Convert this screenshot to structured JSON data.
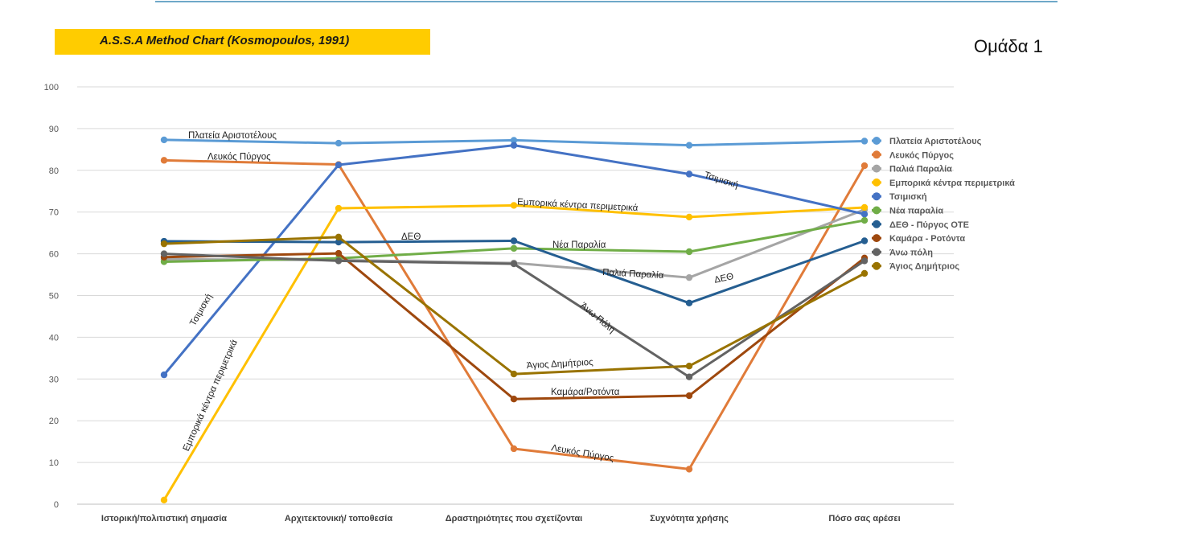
{
  "header": {
    "title": "A.S.S.A Method Chart (Kosmopoulos, 1991)",
    "group": "Ομάδα 1"
  },
  "chart_data": {
    "type": "line",
    "title": "A.S.S.A Method Chart (Kosmopoulos, 1991)",
    "xlabel": "",
    "ylabel": "",
    "ylim": [
      0,
      100
    ],
    "yticks": [
      0,
      10,
      20,
      30,
      40,
      50,
      60,
      70,
      80,
      90,
      100
    ],
    "grid": "horizontal",
    "legend_position": "right",
    "categories": [
      "Ιστορική/πολιτιστική σημασία",
      "Αρχιτεκτονική/ τοποθεσία",
      "Δραστηριότητες που σχετίζονται",
      "Συχνότητα χρήσης",
      "Πόσο σας αρέσει"
    ],
    "series": [
      {
        "name": "Πλατεία Αριστοτέλους",
        "color": "#5b9bd5",
        "values": [
          87.3,
          86.5,
          87.2,
          86.0,
          87.0
        ]
      },
      {
        "name": "Λευκός Πύργος",
        "color": "#e07b39",
        "values": [
          82.4,
          81.4,
          13.3,
          8.4,
          81.1
        ]
      },
      {
        "name": "Παλιά Παραλία",
        "color": "#a5a5a5",
        "values": [
          58.7,
          58.5,
          57.8,
          54.3,
          70.6
        ]
      },
      {
        "name": "Εμπορικά κέντρα περιμετρικά",
        "color": "#ffc000",
        "values": [
          1.0,
          70.9,
          71.6,
          68.8,
          71.1
        ]
      },
      {
        "name": "Τσιμισκή",
        "color": "#4472c4",
        "values": [
          31.0,
          81.3,
          86.0,
          79.1,
          69.5
        ]
      },
      {
        "name": "Νέα παραλία",
        "color": "#70ad47",
        "values": [
          58.1,
          58.9,
          61.3,
          60.5,
          68.0
        ]
      },
      {
        "name": "ΔΕΘ - Πύργος ΟΤΕ",
        "color": "#255e91",
        "values": [
          63.0,
          62.8,
          63.1,
          48.2,
          63.1
        ]
      },
      {
        "name": "Καμάρα - Ροτόντα",
        "color": "#9e480e",
        "values": [
          59.2,
          60.1,
          25.2,
          26.0,
          59.0
        ]
      },
      {
        "name": "Άνω πόλη",
        "color": "#636363",
        "values": [
          60.0,
          58.3,
          57.6,
          30.5,
          58.3
        ]
      },
      {
        "name": "Άγιος Δημήτριος",
        "color": "#997300",
        "values": [
          62.4,
          64.0,
          31.2,
          33.1,
          55.3
        ]
      }
    ],
    "annotations": [
      {
        "text": "Πλατεία Αριστοτέλους",
        "series": 0,
        "x": 0
      },
      {
        "text": "Λευκός Πύργος",
        "series": 1,
        "x": 0
      },
      {
        "text": "Λευκός Πύργος",
        "series": 1,
        "x": 2
      },
      {
        "text": "Τσιμισκή",
        "series": 4,
        "x": 0
      },
      {
        "text": "Τσιμισκή",
        "series": 4,
        "x": 3
      },
      {
        "text": "Εμπορικά κέντρα περιμετρικά",
        "series": 3,
        "x": 0
      },
      {
        "text": "Εμπορικά κέντρα περιμετρικά",
        "series": 3,
        "x": 2
      },
      {
        "text": "ΔΕΘ",
        "series": 6,
        "x": 1
      },
      {
        "text": "ΔΕΘ",
        "series": 6,
        "x": 3
      },
      {
        "text": "Νέα Παραλία",
        "series": 5,
        "x": 2
      },
      {
        "text": "Παλιά Παραλία",
        "series": 2,
        "x": 2
      },
      {
        "text": "Άνω Πόλη",
        "series": 8,
        "x": 2
      },
      {
        "text": "Άγιος Δημήτριος",
        "series": 9,
        "x": 2
      },
      {
        "text": "Καμάρα/Ροτόντα",
        "series": 7,
        "x": 2
      }
    ]
  }
}
